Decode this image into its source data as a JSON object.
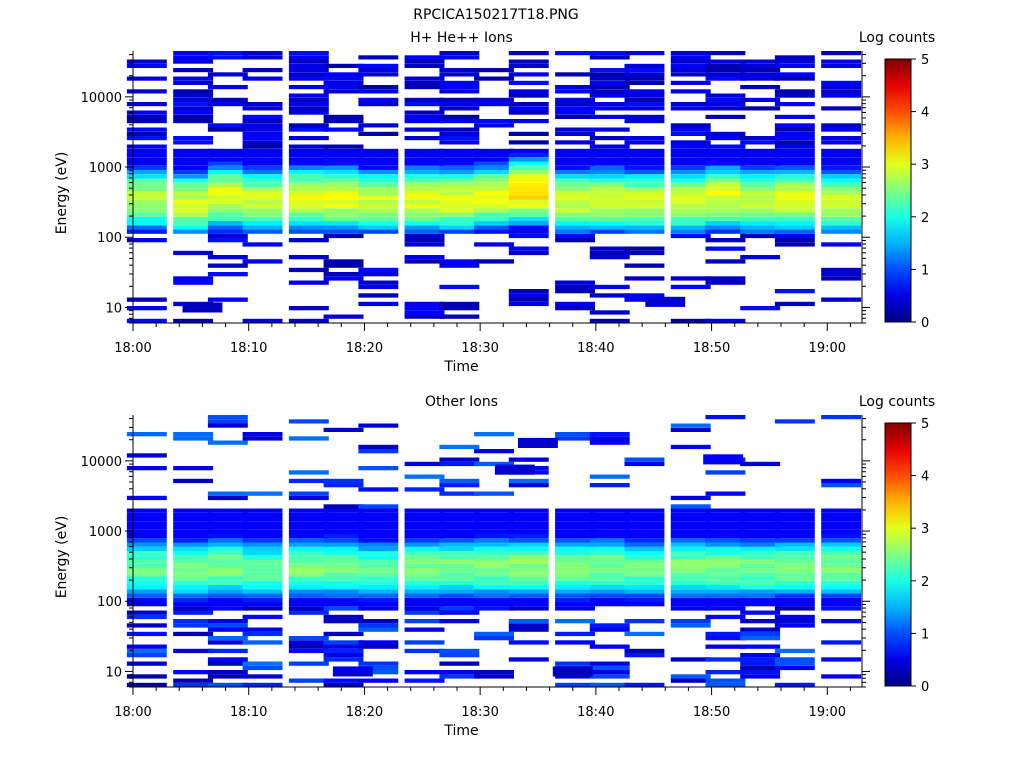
{
  "figure_title": "RPCICA150217T18.PNG",
  "chart_data": [
    {
      "type": "heatmap",
      "title": "H+ He++ Ions",
      "xlabel": "Time",
      "ylabel": "Energy (eV)",
      "x_scale": "time",
      "y_scale": "log",
      "xlim": [
        "18:00",
        "19:03"
      ],
      "ylim": [
        6,
        45000
      ],
      "x_ticks": [
        "18:00",
        "18:10",
        "18:20",
        "18:30",
        "18:40",
        "18:50",
        "19:00"
      ],
      "y_ticks": [
        "10",
        "100",
        "1000",
        "10000"
      ],
      "colorbar": {
        "label": "Log counts",
        "range": [
          0,
          5
        ],
        "ticks": [
          "0",
          "1",
          "2",
          "3",
          "4",
          "5"
        ],
        "colormap": "jet"
      },
      "time_bins": [
        "18:01",
        "18:05",
        "18:08",
        "18:11",
        "18:15",
        "18:18",
        "18:21",
        "18:25",
        "18:28",
        "18:31",
        "18:34",
        "18:38",
        "18:41",
        "18:44",
        "18:48",
        "18:51",
        "18:54",
        "18:57",
        "19:01"
      ],
      "core": {
        "description_peak_energy_eV": [
          350,
          300,
          380,
          330,
          360,
          350,
          330,
          350,
          340,
          380,
          450,
          330,
          340,
          320,
          330,
          370,
          330,
          350,
          320
        ],
        "peak_log_counts": [
          2.8,
          2.9,
          3.0,
          2.9,
          3.0,
          3.0,
          2.9,
          3.0,
          3.0,
          3.0,
          3.3,
          2.9,
          2.9,
          2.9,
          2.9,
          3.0,
          2.9,
          3.0,
          2.9
        ],
        "energy_range_eV": [
          110,
          1800
        ]
      },
      "notable_points": [
        {
          "time": "18:06",
          "energy_eV": 10,
          "log_counts": 0.3
        },
        {
          "time": "18:46",
          "energy_eV": 12,
          "log_counts": 0.4
        }
      ]
    },
    {
      "type": "heatmap",
      "title": "Other Ions",
      "xlabel": "Time",
      "ylabel": "Energy (eV)",
      "x_scale": "time",
      "y_scale": "log",
      "xlim": [
        "18:00",
        "19:03"
      ],
      "ylim": [
        6,
        45000
      ],
      "x_ticks": [
        "18:00",
        "18:10",
        "18:20",
        "18:30",
        "18:40",
        "18:50",
        "19:00"
      ],
      "y_ticks": [
        "10",
        "100",
        "1000",
        "10000"
      ],
      "colorbar": {
        "label": "Log counts",
        "range": [
          0,
          5
        ],
        "ticks": [
          "0",
          "1",
          "2",
          "3",
          "4",
          "5"
        ],
        "colormap": "jet"
      },
      "time_bins": [
        "18:01",
        "18:05",
        "18:08",
        "18:11",
        "18:15",
        "18:18",
        "18:21",
        "18:25",
        "18:28",
        "18:31",
        "18:34",
        "18:38",
        "18:41",
        "18:44",
        "18:48",
        "18:51",
        "18:54",
        "18:57",
        "19:01"
      ],
      "core": {
        "description_peak_energy_eV": [
          300,
          280,
          300,
          280,
          300,
          300,
          280,
          300,
          300,
          300,
          300,
          290,
          300,
          290,
          300,
          300,
          290,
          300,
          300
        ],
        "peak_log_counts": [
          2.4,
          2.5,
          2.5,
          2.4,
          2.5,
          2.5,
          2.4,
          2.5,
          2.5,
          2.5,
          2.6,
          2.5,
          2.5,
          2.4,
          2.5,
          2.5,
          2.5,
          2.5,
          2.5
        ],
        "energy_range_eV": [
          90,
          2000
        ]
      },
      "notable_points": [
        {
          "time": "18:33",
          "energy_eV": 7500,
          "log_counts": 0.4
        },
        {
          "time": "18:35",
          "energy_eV": 18000,
          "log_counts": 0.4
        },
        {
          "time": "18:51",
          "energy_eV": 10500,
          "log_counts": 0.6
        },
        {
          "time": "18:19",
          "energy_eV": 10,
          "log_counts": 0.5
        },
        {
          "time": "18:38",
          "energy_eV": 10,
          "log_counts": 0.3
        }
      ]
    }
  ]
}
